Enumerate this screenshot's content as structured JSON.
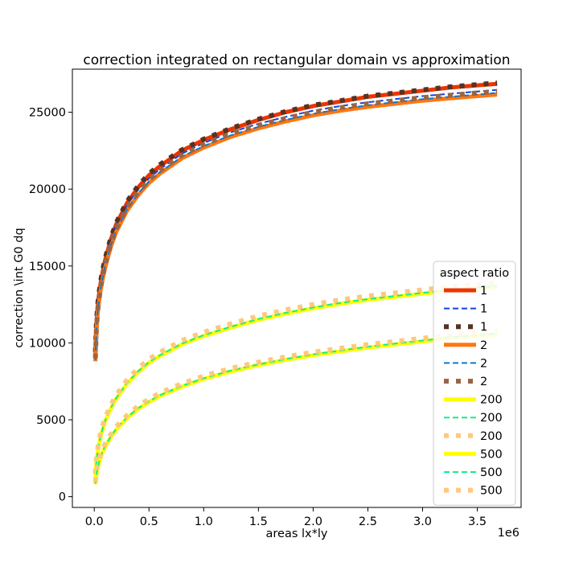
{
  "chart_data": {
    "type": "line",
    "title": "correction integrated on rectangular domain vs approximation",
    "xlabel": "areas lx*ly",
    "ylabel": "correction \\int G0 dq",
    "x_offset_text": "1e6",
    "xlim": [
      -200000,
      3900000
    ],
    "ylim": [
      -700,
      27800
    ],
    "xticks": [
      0,
      500000,
      1000000,
      1500000,
      2000000,
      2500000,
      3000000,
      3500000
    ],
    "xtick_labels": [
      "0.0",
      "0.5",
      "1.0",
      "1.5",
      "2.0",
      "2.5",
      "3.0",
      "3.5"
    ],
    "yticks": [
      0,
      5000,
      10000,
      15000,
      20000,
      25000
    ],
    "ytick_labels": [
      "0",
      "5000",
      "10000",
      "15000",
      "20000",
      "25000"
    ],
    "grid": false,
    "legend": {
      "title": "aspect ratio",
      "placement": "lower right"
    },
    "x": [
      10000,
      20000,
      30000,
      40000,
      60000,
      80000,
      100000,
      150000,
      200000,
      300000,
      400000,
      500000,
      600000,
      800000,
      1000000,
      1250000,
      1500000,
      1750000,
      2000000,
      2250000,
      2500000,
      2750000,
      3000000,
      3250000,
      3500000,
      3680000
    ],
    "series": [
      {
        "name": "1",
        "color": "#ee3300",
        "style": "solid-thick",
        "values": [
          9300,
          11200,
          12300,
          13000,
          14000,
          14750,
          15400,
          16700,
          17700,
          19100,
          20100,
          20900,
          21500,
          22500,
          23200,
          23900,
          24500,
          25000,
          25400,
          25700,
          26000,
          26200,
          26400,
          26600,
          26750,
          26850
        ]
      },
      {
        "name": "1",
        "color": "#1144dd",
        "style": "dashed",
        "values": [
          9300,
          11200,
          12300,
          13000,
          14000,
          14750,
          15400,
          16700,
          17700,
          19000,
          19950,
          20700,
          21300,
          22300,
          23000,
          23700,
          24250,
          24700,
          25100,
          25400,
          25650,
          25850,
          26050,
          26200,
          26350,
          26450
        ]
      },
      {
        "name": "1",
        "color": "#553322",
        "style": "dotted-thick",
        "values": [
          9400,
          11300,
          12400,
          13100,
          14100,
          14850,
          15500,
          16800,
          17800,
          19200,
          20200,
          21000,
          21600,
          22550,
          23250,
          23950,
          24550,
          25050,
          25450,
          25750,
          26050,
          26250,
          26450,
          26650,
          26800,
          26900
        ]
      },
      {
        "name": "2",
        "color": "#ff7711",
        "style": "solid-thick",
        "values": [
          8800,
          10700,
          11800,
          12500,
          13500,
          14250,
          14900,
          16200,
          17200,
          18600,
          19600,
          20400,
          21000,
          22000,
          22700,
          23400,
          23950,
          24400,
          24800,
          25100,
          25350,
          25550,
          25750,
          25900,
          26050,
          26150
        ]
      },
      {
        "name": "2",
        "color": "#1177cc",
        "style": "dashed",
        "values": [
          8900,
          10800,
          11900,
          12600,
          13600,
          14350,
          15000,
          16300,
          17300,
          18700,
          19700,
          20500,
          21100,
          22100,
          22800,
          23500,
          24050,
          24500,
          24900,
          25200,
          25450,
          25650,
          25850,
          26000,
          26150,
          26250
        ]
      },
      {
        "name": "2",
        "color": "#996644",
        "style": "dotted-thick",
        "values": [
          9000,
          10900,
          12000,
          12700,
          13700,
          14450,
          15100,
          16400,
          17400,
          18800,
          19800,
          20600,
          21200,
          22200,
          22900,
          23600,
          24150,
          24600,
          25000,
          25300,
          25550,
          25750,
          25950,
          26100,
          26250,
          26350
        ]
      },
      {
        "name": "200",
        "color": "#ffff00",
        "style": "solid-thick",
        "values": [
          1300,
          2200,
          2800,
          3300,
          3950,
          4450,
          4900,
          5700,
          6350,
          7350,
          8100,
          8700,
          9150,
          9900,
          10450,
          11000,
          11500,
          11900,
          12250,
          12550,
          12800,
          13000,
          13200,
          13400,
          13550,
          13650
        ]
      },
      {
        "name": "200",
        "color": "#11ee88",
        "style": "dashed",
        "values": [
          1350,
          2250,
          2850,
          3350,
          4000,
          4500,
          4950,
          5750,
          6400,
          7400,
          8150,
          8750,
          9200,
          9950,
          10500,
          11050,
          11550,
          11950,
          12300,
          12600,
          12850,
          13050,
          13250,
          13450,
          13600,
          13700
        ]
      },
      {
        "name": "200",
        "color": "#ffc880",
        "style": "dotted-thick",
        "values": [
          1500,
          2450,
          3050,
          3550,
          4200,
          4700,
          5150,
          5950,
          6600,
          7600,
          8350,
          8950,
          9400,
          10150,
          10700,
          11250,
          11750,
          12150,
          12500,
          12800,
          13050,
          13250,
          13450,
          13650,
          13800,
          13900
        ]
      },
      {
        "name": "500",
        "color": "#ffff00",
        "style": "solid-thick",
        "values": [
          800,
          1400,
          1800,
          2100,
          2600,
          2950,
          3250,
          3850,
          4350,
          5100,
          5700,
          6150,
          6550,
          7150,
          7650,
          8150,
          8550,
          8900,
          9200,
          9450,
          9700,
          9900,
          10100,
          10300,
          10450,
          10550
        ]
      },
      {
        "name": "500",
        "color": "#11ee88",
        "style": "dashed",
        "values": [
          850,
          1450,
          1850,
          2150,
          2650,
          3000,
          3300,
          3900,
          4400,
          5150,
          5750,
          6200,
          6600,
          7200,
          7700,
          8200,
          8600,
          8950,
          9250,
          9500,
          9750,
          9950,
          10150,
          10350,
          10500,
          10600
        ]
      },
      {
        "name": "500",
        "color": "#ffc880",
        "style": "dotted-thick",
        "values": [
          950,
          1600,
          2000,
          2300,
          2800,
          3150,
          3450,
          4050,
          4550,
          5300,
          5900,
          6350,
          6750,
          7350,
          7850,
          8350,
          8750,
          9100,
          9400,
          9650,
          9900,
          10100,
          10300,
          10500,
          10650,
          10750
        ]
      }
    ]
  }
}
